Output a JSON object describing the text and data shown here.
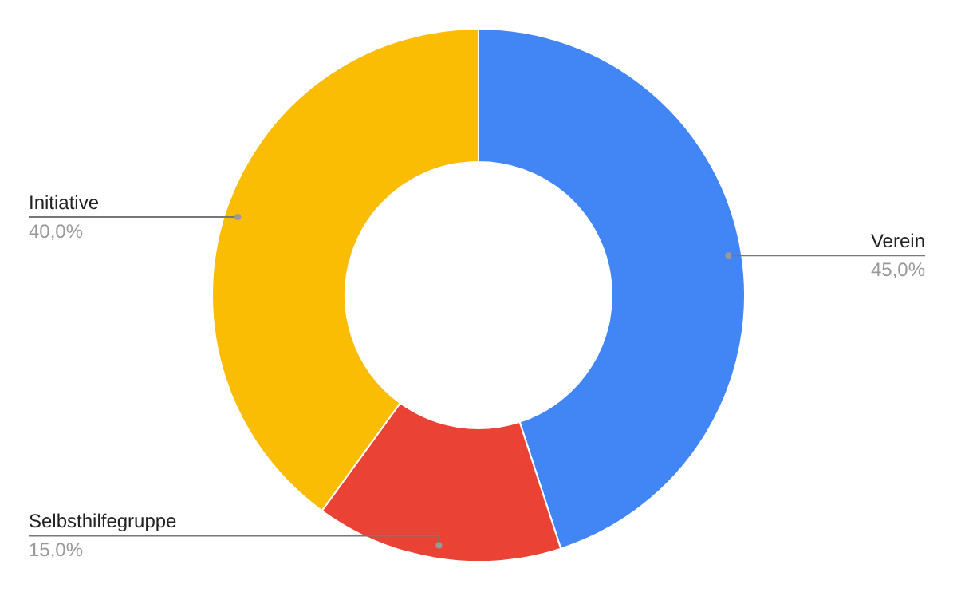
{
  "chart_data": {
    "type": "donut",
    "categories": [
      "Verein",
      "Selbsthilfegruppe",
      "Initiative"
    ],
    "values": [
      45,
      15,
      40
    ],
    "value_labels": [
      "45,0%",
      "15,0%",
      "40,0%"
    ],
    "colors": [
      "#4285f4",
      "#ea4335",
      "#fbbc04"
    ],
    "legend": false
  }
}
